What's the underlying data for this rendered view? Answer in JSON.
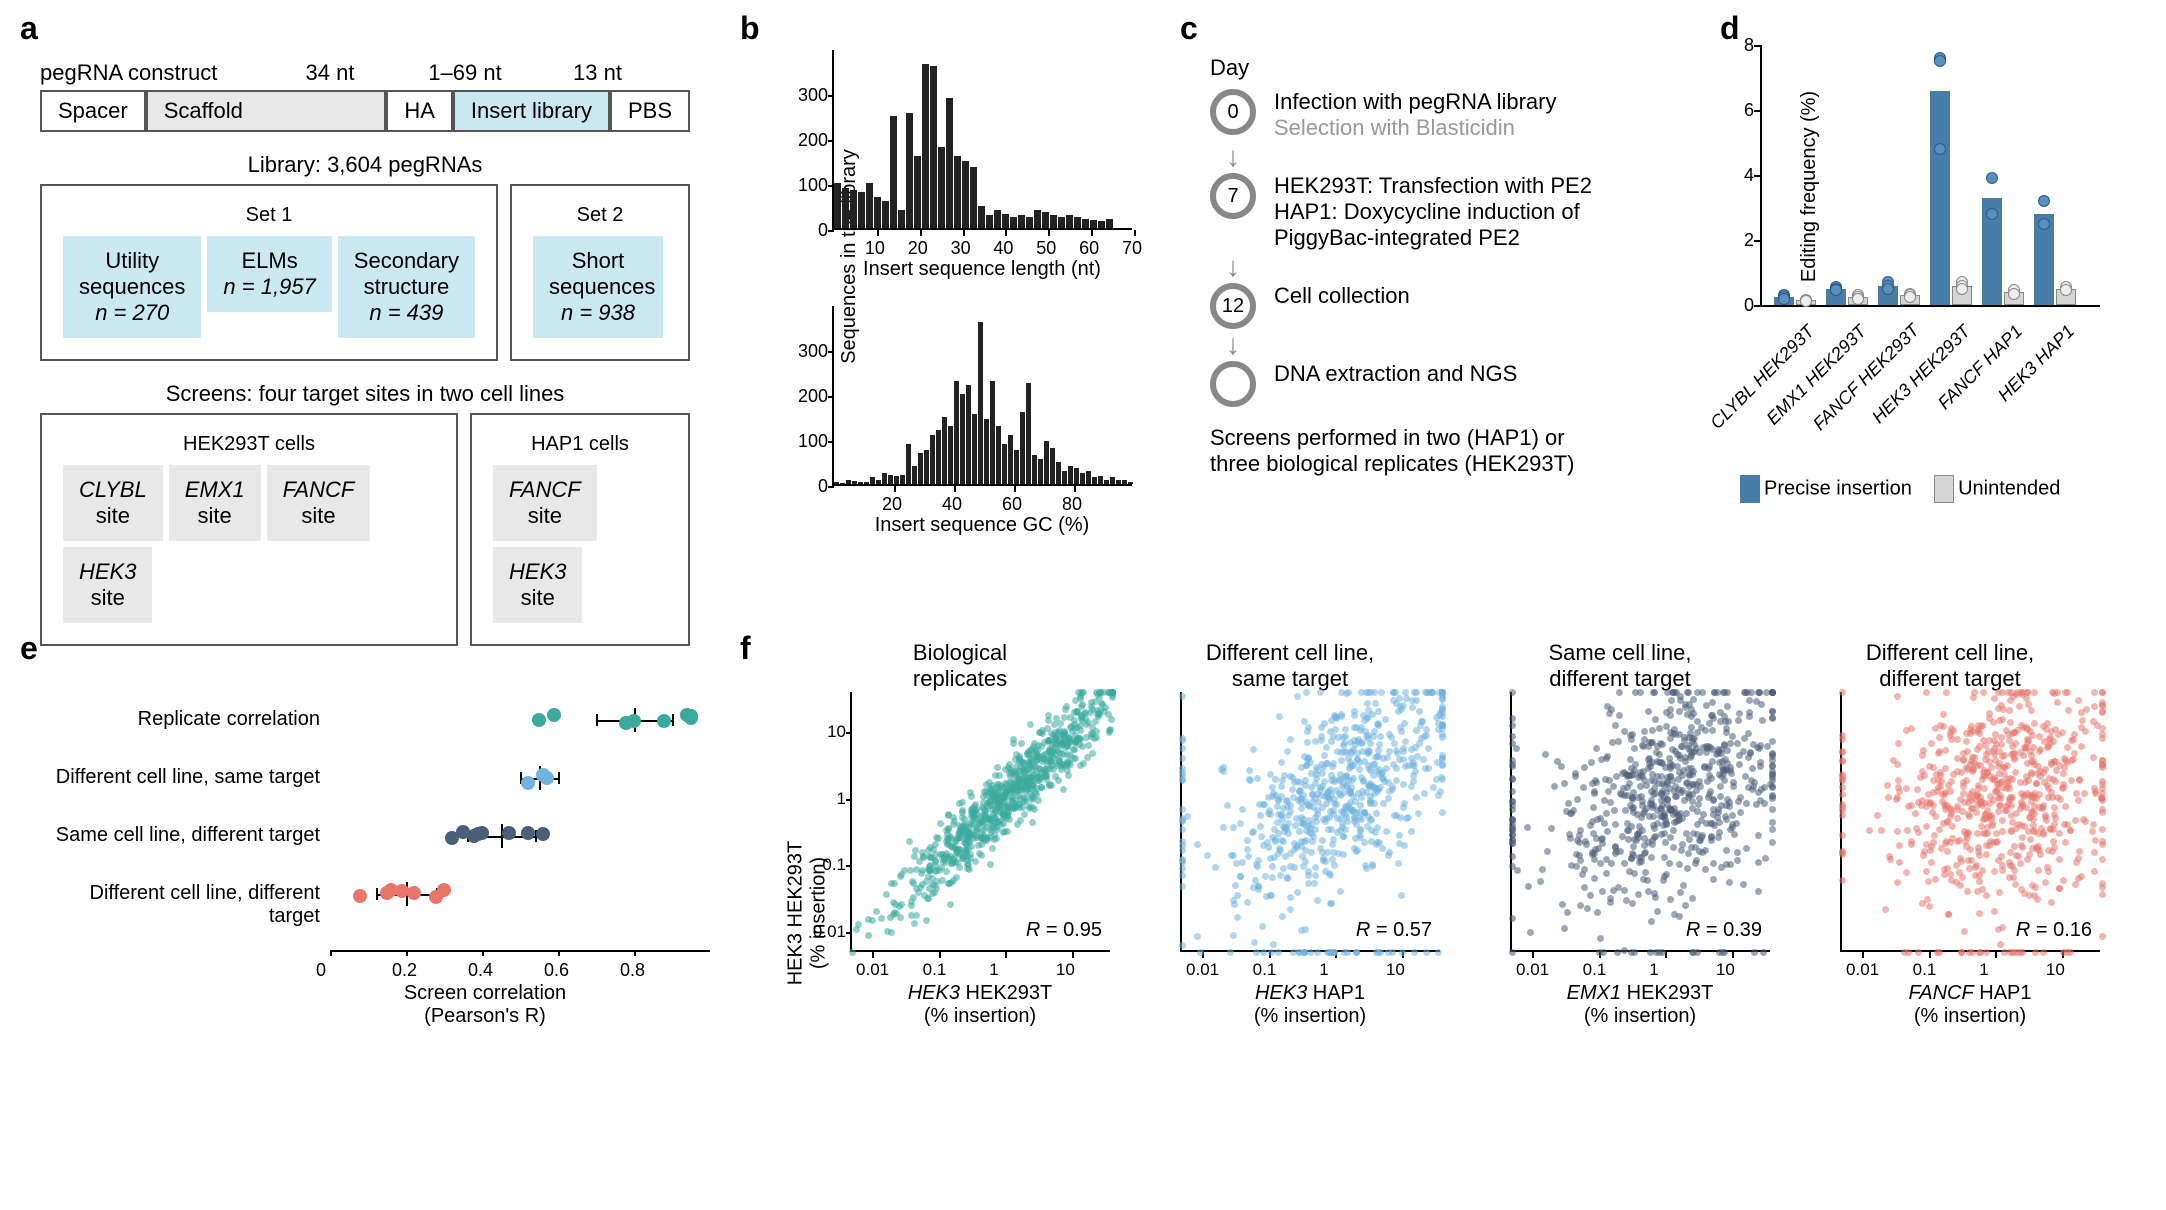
{
  "panelA": {
    "label": "a",
    "construct": {
      "spacer": "Spacer",
      "scaffold": "Scaffold",
      "ha": "HA",
      "insert": "Insert library",
      "pbs": "PBS",
      "topLabel": "pegRNA construct",
      "haLen": "34 nt",
      "insertLen": "1–69 nt",
      "pbsLen": "13 nt"
    },
    "libTitle": "Library: 3,604 pegRNAs",
    "set1": "Set 1",
    "set2": "Set 2",
    "box1": {
      "t": "Utility\nsequences",
      "n": "n = 270"
    },
    "box2": {
      "t": "ELMs",
      "n": "n = 1,957"
    },
    "box3": {
      "t": "Secondary\nstructure",
      "n": "n = 439"
    },
    "box4": {
      "t": "Short\nsequences",
      "n": "n = 938"
    },
    "screensTitle": "Screens: four target sites in two cell lines",
    "hekLabel": "HEK293T cells",
    "hapLabel": "HAP1 cells",
    "sites": {
      "clybl": "CLYBL\nsite",
      "emx1": "EMX1\nsite",
      "fancf": "FANCF\nsite",
      "hek3": "HEK3\nsite",
      "fancf2": "FANCF\nsite",
      "hek32": "HEK3\nsite"
    }
  },
  "panelB": {
    "label": "b",
    "ylabel": "Sequences in the library",
    "xlabel1": "Insert sequence length (nt)",
    "xlabel2": "Insert sequence GC (%)",
    "histo1": {
      "ymax": 400,
      "yticks": [
        0,
        100,
        200,
        300
      ],
      "xmax": 70,
      "xticks": [
        10,
        20,
        30,
        40,
        50,
        60,
        70
      ],
      "bins": [
        100,
        90,
        85,
        80,
        100,
        70,
        60,
        250,
        40,
        255,
        160,
        365,
        360,
        180,
        290,
        160,
        150,
        135,
        50,
        30,
        40,
        32,
        25,
        30,
        25,
        40,
        35,
        30,
        25,
        30,
        25,
        20,
        18,
        15,
        20
      ],
      "binWidth": 8
    },
    "histo2": {
      "ymax": 400,
      "yticks": [
        0,
        100,
        200,
        300
      ],
      "xmax": 100,
      "xticks": [
        20,
        40,
        60,
        80
      ],
      "bins": [
        5,
        3,
        8,
        6,
        5,
        4,
        15,
        10,
        25,
        20,
        18,
        20,
        90,
        40,
        70,
        75,
        110,
        120,
        150,
        130,
        230,
        200,
        220,
        155,
        360,
        145,
        230,
        130,
        90,
        110,
        75,
        160,
        225,
        65,
        55,
        95,
        80,
        50,
        30,
        40,
        35,
        25,
        30,
        15,
        18,
        10,
        15,
        8,
        10,
        5
      ],
      "binWidth": 6
    }
  },
  "panelC": {
    "label": "c",
    "dayLabel": "Day",
    "steps": [
      {
        "day": "0",
        "text1": "Infection with pegRNA library",
        "text2": "Selection with Blasticidin"
      },
      {
        "day": "7",
        "text1": "HEK293T: Transfection with PE2",
        "text2": "HAP1: Doxycycline induction of\nPiggyBac-integrated PE2"
      },
      {
        "day": "12",
        "text1": "Cell collection"
      },
      {
        "day": "",
        "text1": "DNA extraction and NGS"
      }
    ],
    "note": "Screens performed in two (HAP1) or\nthree biological replicates (HEK293T)"
  },
  "panelD": {
    "label": "d",
    "ylabel": "Editing frequency (%)",
    "ymax": 8,
    "yticks": [
      0,
      2,
      4,
      6,
      8
    ],
    "groups": [
      {
        "label": "CLYBL HEK293T",
        "precise": 0.25,
        "unintended": 0.15,
        "dotsP": [
          0.3,
          0.25,
          0.2
        ],
        "dotsU": [
          0.15,
          0.15,
          0.12
        ]
      },
      {
        "label": "EMX1 HEK293T",
        "precise": 0.5,
        "unintended": 0.25,
        "dotsP": [
          0.55,
          0.5,
          0.45
        ],
        "dotsU": [
          0.3,
          0.25,
          0.2
        ]
      },
      {
        "label": "FANCF HEK293T",
        "precise": 0.6,
        "unintended": 0.3,
        "dotsP": [
          0.7,
          0.6,
          0.5
        ],
        "dotsU": [
          0.35,
          0.3,
          0.25
        ]
      },
      {
        "label": "HEK3 HEK293T",
        "precise": 6.6,
        "unintended": 0.6,
        "dotsP": [
          7.6,
          7.5,
          4.8
        ],
        "dotsU": [
          0.7,
          0.6,
          0.5
        ]
      },
      {
        "label": "FANCF HAP1",
        "precise": 3.3,
        "unintended": 0.4,
        "dotsP": [
          3.9,
          2.8
        ],
        "dotsU": [
          0.45,
          0.35
        ]
      },
      {
        "label": "HEK3 HAP1",
        "precise": 2.8,
        "unintended": 0.5,
        "dotsP": [
          3.2,
          2.5
        ],
        "dotsU": [
          0.55,
          0.45
        ]
      }
    ],
    "legend": {
      "precise": "Precise insertion",
      "unintended": "Unintended"
    },
    "colors": {
      "precise": "#4a7ca8",
      "unintended": "#d5d5d5"
    }
  },
  "panelE": {
    "label": "e",
    "xlabel": "Screen correlation\n(Pearson's R)",
    "xmax": 1.0,
    "xticks": [
      0,
      0.2,
      0.4,
      0.6,
      0.8
    ],
    "rows": [
      {
        "label": "Replicate correlation",
        "color": "#3aa99f",
        "mean": 0.8,
        "seLow": 0.7,
        "seHigh": 0.9,
        "pts": [
          0.55,
          0.59,
          0.78,
          0.8,
          0.88,
          0.94,
          0.95,
          0.95
        ]
      },
      {
        "label": "Different cell line, same target",
        "color": "#6fb3de",
        "mean": 0.55,
        "seLow": 0.5,
        "seHigh": 0.6,
        "pts": [
          0.52,
          0.56,
          0.57
        ]
      },
      {
        "label": "Same cell line, different target",
        "color": "#4a5f7a",
        "mean": 0.45,
        "seLow": 0.36,
        "seHigh": 0.54,
        "pts": [
          0.32,
          0.35,
          0.38,
          0.39,
          0.4,
          0.47,
          0.52,
          0.56
        ]
      },
      {
        "label": "Different cell line, different\ntarget",
        "color": "#e8766b",
        "mean": 0.2,
        "seLow": 0.12,
        "seHigh": 0.28,
        "pts": [
          0.08,
          0.15,
          0.16,
          0.19,
          0.22,
          0.28,
          0.3
        ]
      }
    ]
  },
  "panelF": {
    "label": "f",
    "ylabel": "HEK3 HEK293T\n(% insertion)",
    "logTicks": [
      0.01,
      0.1,
      1,
      10
    ],
    "tickLabels": [
      "0.01",
      "0.1",
      "1",
      "10"
    ],
    "panels": [
      {
        "title": "Biological\nreplicates",
        "xlabel": "HEK3 HEK293T\n(% insertion)",
        "r": "R = 0.95",
        "color": "#3aa99f",
        "correlation": 0.95,
        "n": 800
      },
      {
        "title": "Different cell line,\nsame target",
        "xlabel": "HEK3 HAP1\n(% insertion)",
        "r": "R = 0.57",
        "color": "#6fb3de",
        "correlation": 0.57,
        "n": 700
      },
      {
        "title": "Same cell line,\ndifferent target",
        "xlabel": "EMX1 HEK293T\n(% insertion)",
        "r": "R = 0.39",
        "color": "#4a5f7a",
        "correlation": 0.39,
        "n": 700
      },
      {
        "title": "Different cell line,\ndifferent target",
        "xlabel": "FANCF HAP1\n(% insertion)",
        "r": "R = 0.16",
        "color": "#e8766b",
        "correlation": 0.16,
        "n": 700
      }
    ]
  }
}
